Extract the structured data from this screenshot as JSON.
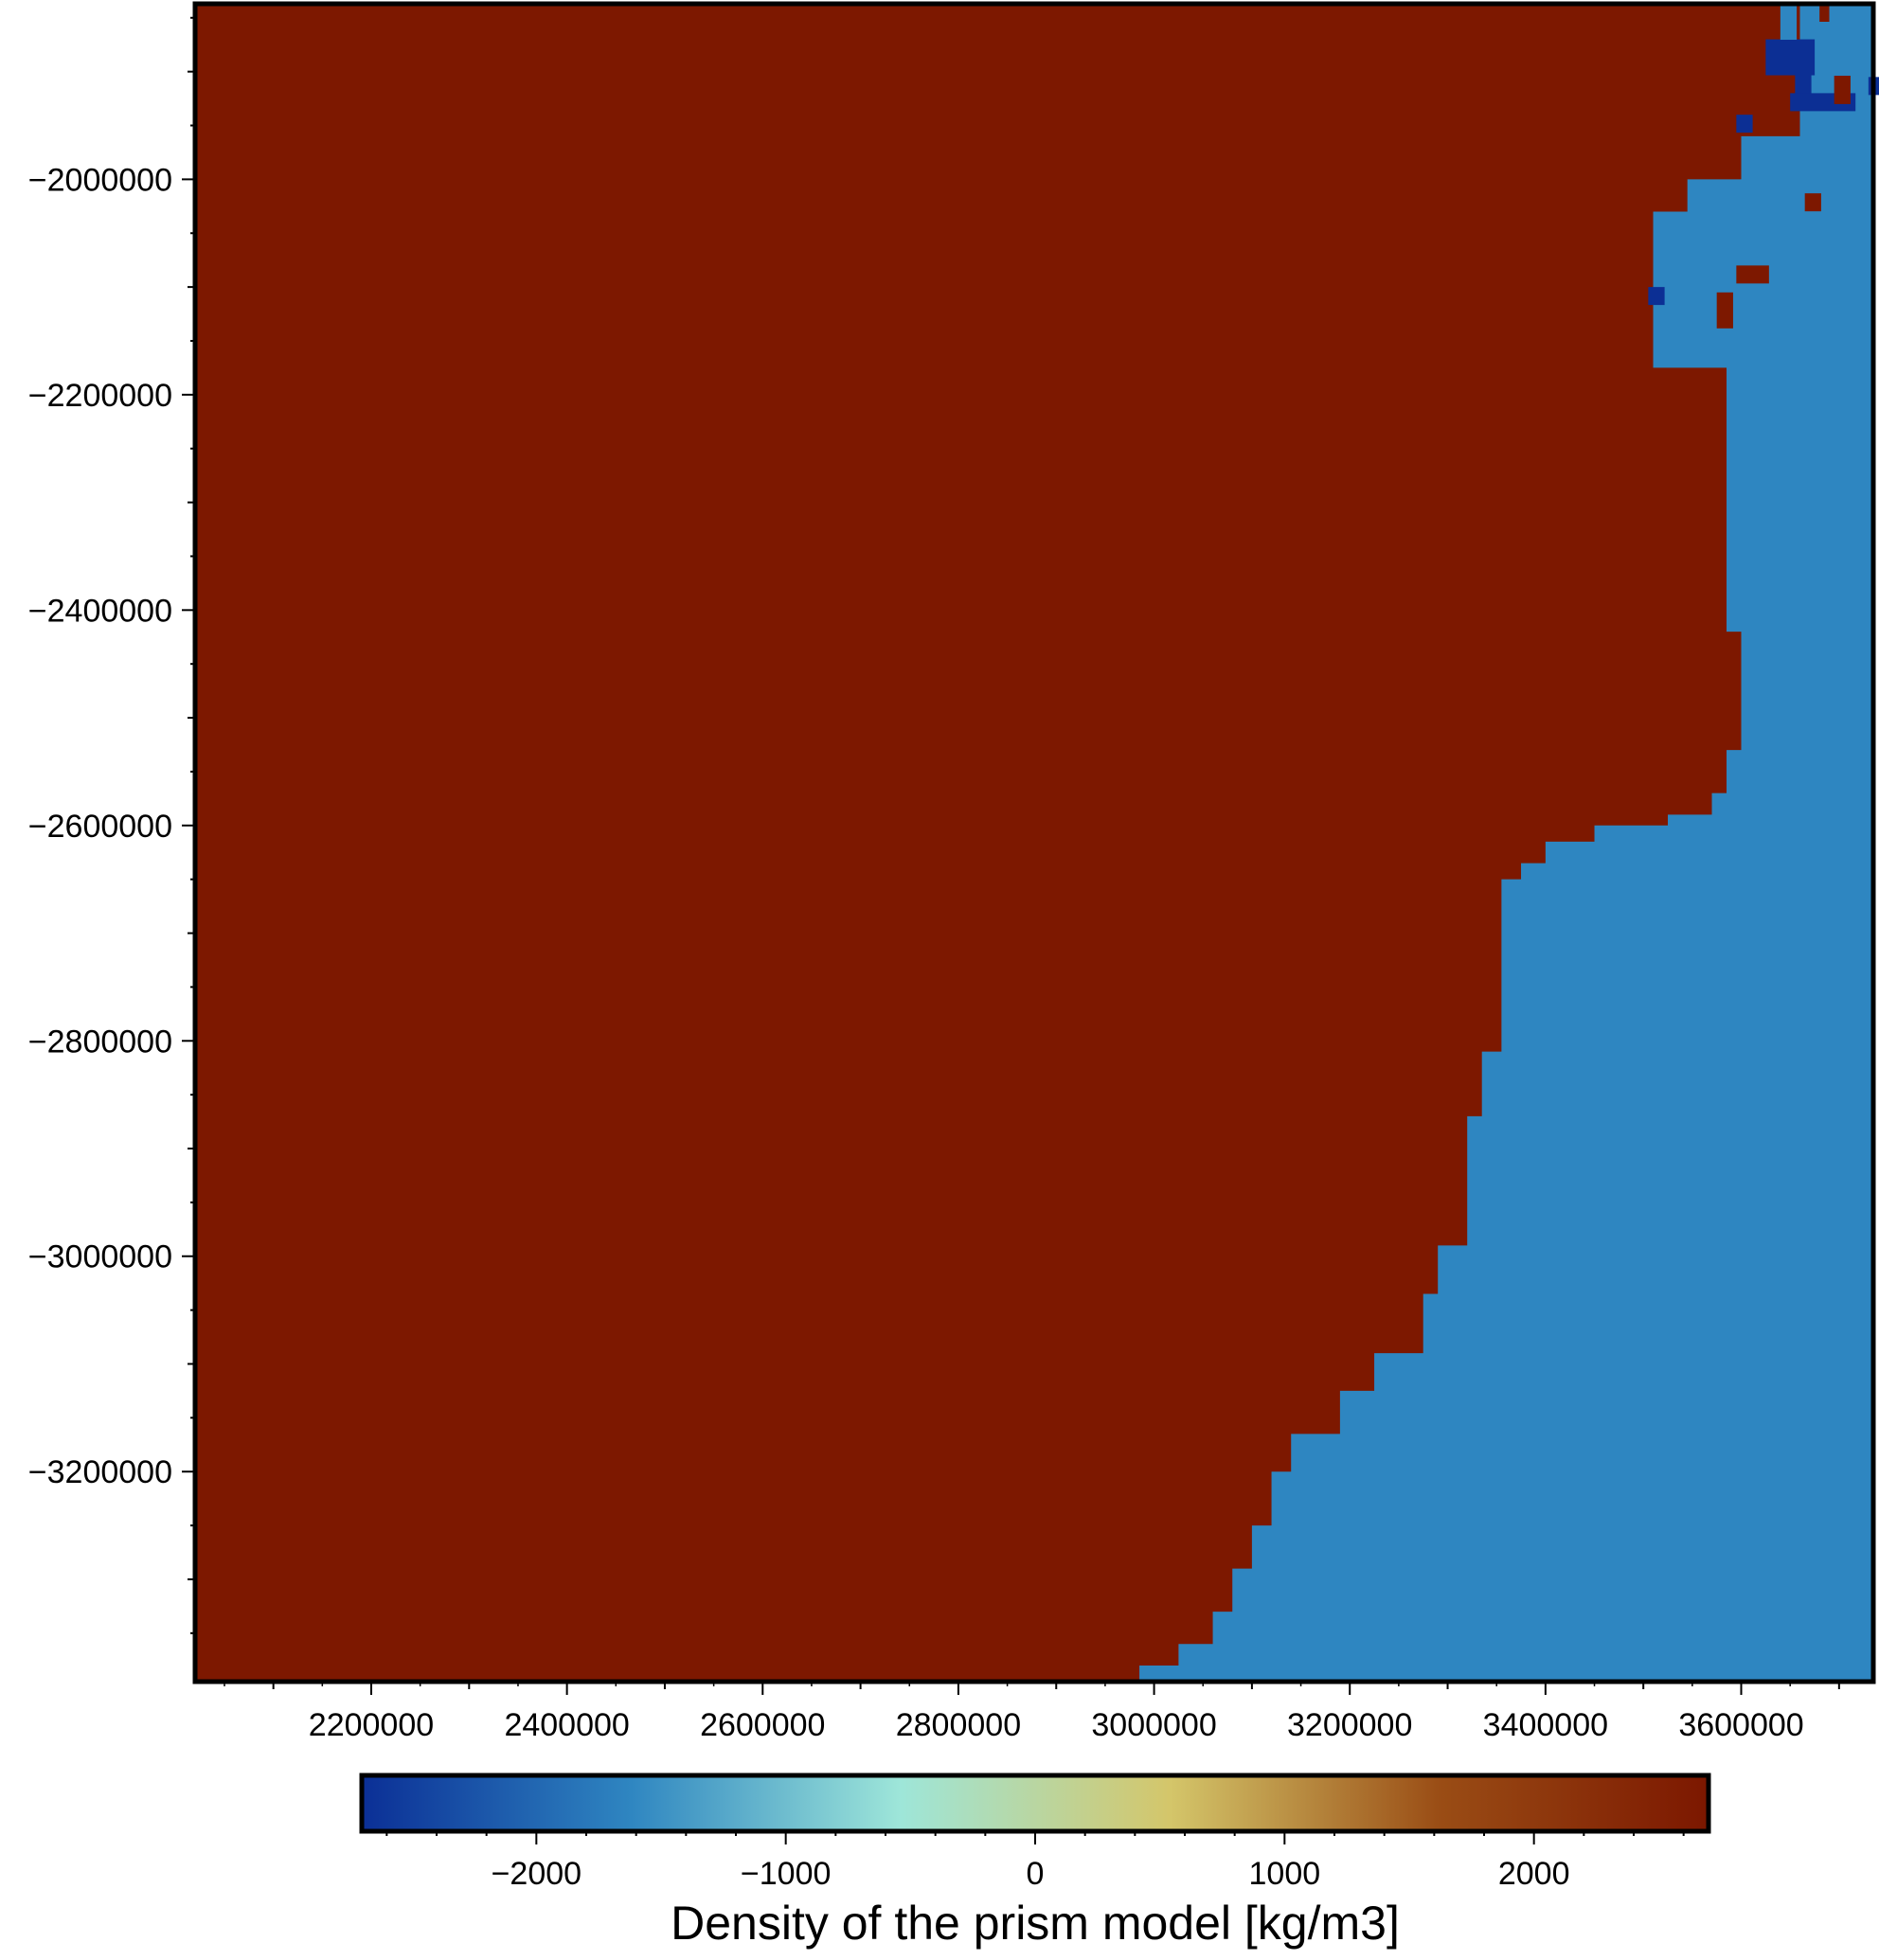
{
  "chart_data": {
    "type": "heatmap",
    "title": "",
    "xlabel": "",
    "ylabel": "",
    "xlim": [
      2020000,
      3735000
    ],
    "ylim": [
      -3395000,
      -1837000
    ],
    "x_ticks": [
      2200000,
      2400000,
      2600000,
      2800000,
      3000000,
      3200000,
      3400000,
      3600000
    ],
    "x_tick_labels": [
      "2200000",
      "2400000",
      "2600000",
      "2800000",
      "3000000",
      "3200000",
      "3400000",
      "3600000"
    ],
    "y_ticks": [
      -2000000,
      -2200000,
      -2400000,
      -2600000,
      -2800000,
      -3000000,
      -3200000
    ],
    "y_tick_labels": [
      "−2000000",
      "−2200000",
      "−2400000",
      "−2600000",
      "−2800000",
      "−3000000",
      "−3200000"
    ],
    "grid": false,
    "cell_size": 16700,
    "values_description_free": true,
    "regions": [
      {
        "value": 2670,
        "note_free": true
      },
      {
        "value": -1645
      }
    ],
    "high_density_value": 2670,
    "low_density_value": -1645,
    "very_low_density_value": -2670,
    "boundary": [
      [
        -1837000,
        3660000
      ],
      [
        -1960000,
        3600000
      ],
      [
        -2000000,
        3545000
      ],
      [
        -2030000,
        3510000
      ],
      [
        -2110000,
        3510000
      ],
      [
        -2175000,
        3525000
      ],
      [
        -2175000,
        3585000
      ],
      [
        -2290000,
        3585000
      ],
      [
        -2420000,
        3600000
      ],
      [
        -2530000,
        3585000
      ],
      [
        -2570000,
        3570000
      ],
      [
        -2590000,
        3525000
      ],
      [
        -2600000,
        3450000
      ],
      [
        -2615000,
        3400000
      ],
      [
        -2635000,
        3375000
      ],
      [
        -2650000,
        3355000
      ],
      [
        -2810000,
        3335000
      ],
      [
        -2870000,
        3320000
      ],
      [
        -2990000,
        3290000
      ],
      [
        -3035000,
        3275000
      ],
      [
        -3090000,
        3225000
      ],
      [
        -3125000,
        3190000
      ],
      [
        -3165000,
        3140000
      ],
      [
        -3200000,
        3120000
      ],
      [
        -3250000,
        3100000
      ],
      [
        -3290000,
        3080000
      ],
      [
        -3330000,
        3060000
      ],
      [
        -3360000,
        3025000
      ],
      [
        -3380000,
        2985000
      ],
      [
        -3395000,
        2955000
      ]
    ],
    "colorbar": {
      "label": "Density of the prism model [kg/m3]",
      "range": [
        -2700,
        2700
      ],
      "ticks": [
        -2000,
        -1000,
        0,
        1000,
        2000
      ],
      "tick_labels": [
        "−2000",
        "−1000",
        "0",
        "1000",
        "2000"
      ],
      "colors": [
        "#0b2f96",
        "#2f86c1",
        "#9ee6d9",
        "#d4c66a",
        "#9a4d15",
        "#7c1700"
      ]
    }
  },
  "colors": {
    "high": "#7d1800",
    "low": "#2e86c1",
    "very_low": "#0c2f94",
    "frame": "#000000"
  }
}
